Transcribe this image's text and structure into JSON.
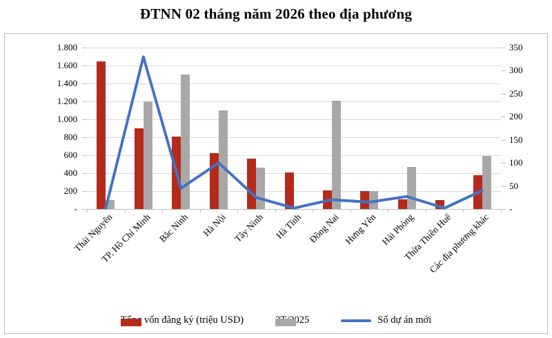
{
  "title": "ĐTNN 02 tháng năm 2026 theo địa phương",
  "colors": {
    "bar_registered": "#B42B1C",
    "bar_prev_period": "#A8A8A8",
    "line_new_projects": "#4472C4",
    "gridline": "#D9D9D9",
    "axis": "#BFBFBF",
    "text": "#000000",
    "frame_border": "#BDBDBD",
    "background": "#FFFFFF"
  },
  "chart_data": {
    "type": "bar",
    "subtype": "combo-bar-line",
    "title": "ĐTNN 02 tháng năm 2026 theo địa phương",
    "categories": [
      "Thái Nguyên",
      "TP. Hồ Chí Minh",
      "Bắc Ninh",
      "Hà Nội",
      "Tây Ninh",
      "Hà Tĩnh",
      "Đồng Nai",
      "Hưng Yên",
      "Hải Phòng",
      "Thừa Thiên Huế",
      "Các địa phương khác"
    ],
    "series": [
      {
        "name": "Tổng vốn đăng ký (triệu USD)",
        "type": "bar",
        "axis": "left",
        "color": "#B42B1C",
        "values": [
          1650,
          900,
          810,
          620,
          560,
          410,
          210,
          200,
          110,
          100,
          375
        ]
      },
      {
        "name": "2T/2025",
        "type": "bar",
        "axis": "left",
        "color": "#A8A8A8",
        "values": [
          100,
          1200,
          1500,
          1100,
          460,
          0,
          1210,
          200,
          470,
          0,
          590
        ]
      },
      {
        "name": "Số dự án mới",
        "type": "line",
        "axis": "right",
        "color": "#4472C4",
        "values": [
          2,
          330,
          45,
          100,
          25,
          2,
          20,
          15,
          27,
          2,
          40
        ]
      }
    ],
    "left_axis": {
      "min": 0,
      "max": 1800,
      "step": 200,
      "ticks": [
        "1.800",
        "1.600",
        "1.400",
        "1.200",
        "1.000",
        "800",
        "600",
        "400",
        "200",
        "-"
      ]
    },
    "right_axis": {
      "min": 0,
      "max": 350,
      "step": 50,
      "ticks": [
        "350",
        "300",
        "250",
        "200",
        "150",
        "100",
        "50",
        "-"
      ]
    },
    "grid": true,
    "legend_position": "bottom",
    "x_labels_rotation_deg": 45
  }
}
